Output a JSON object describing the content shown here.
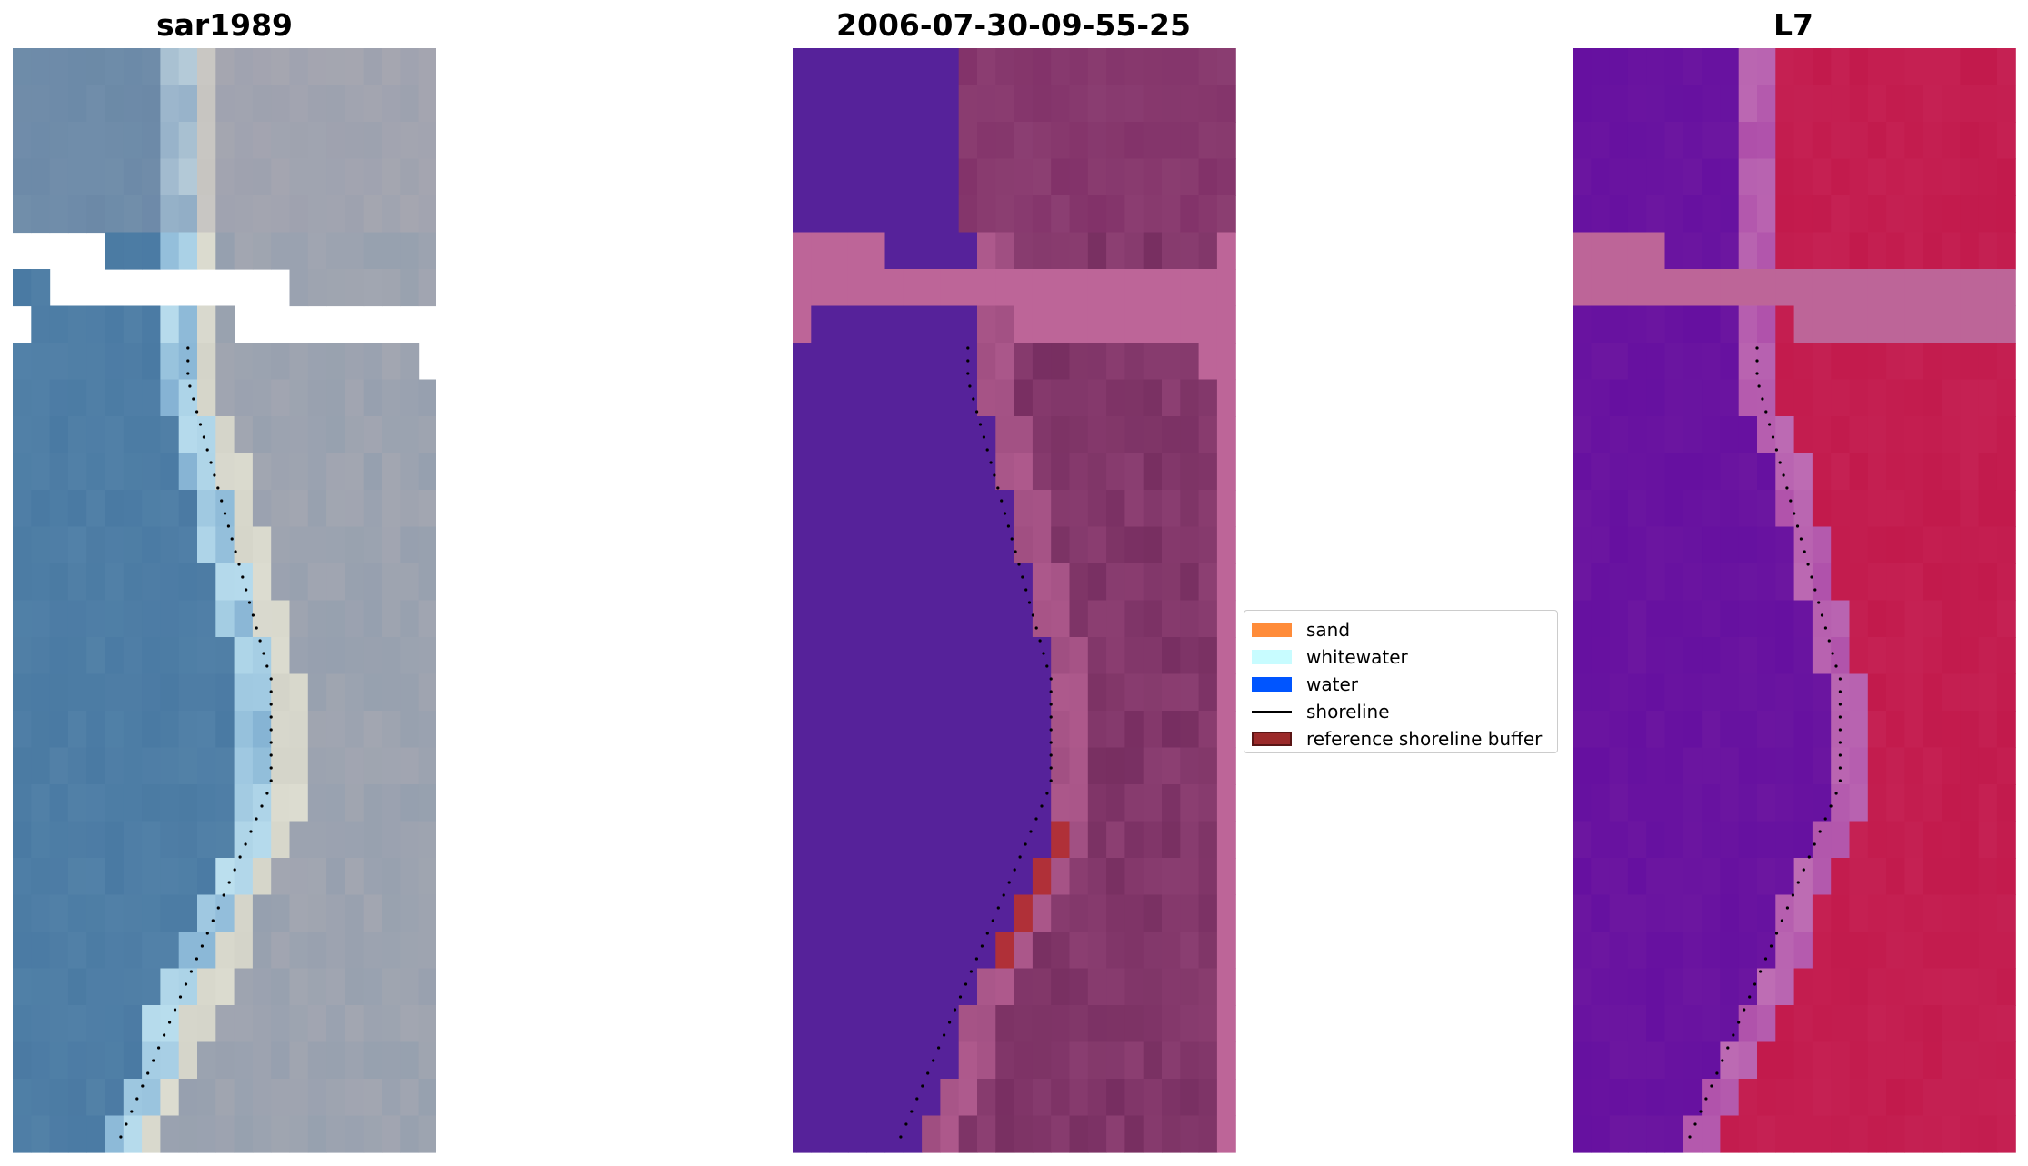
{
  "figure": {
    "panels": [
      {
        "title": "sar1989",
        "kind": "true-color"
      },
      {
        "title": "2006-07-30-09-55-25",
        "kind": "classified"
      },
      {
        "title": "L7",
        "kind": "index"
      }
    ]
  },
  "legend": {
    "items": [
      {
        "label": "sand",
        "color": "#ff8c3a",
        "kind": "patch"
      },
      {
        "label": "whitewater",
        "color": "#c8fcff",
        "kind": "patch"
      },
      {
        "label": "water",
        "color": "#0055ff",
        "kind": "patch"
      },
      {
        "label": "shoreline",
        "color": "#000000",
        "kind": "line"
      },
      {
        "label": "reference shoreline buffer",
        "color": "#9b2a2a",
        "kind": "patch",
        "edge": "#5a1515"
      }
    ]
  },
  "colors": {
    "nodata_pink": "#bd6598",
    "water_purple": "#56229a",
    "land_mauve": "#8c3f72",
    "buffer_red": "#b03038",
    "sea_blue": "#4a7aa3",
    "sand_white": "#dcdcd0",
    "index_purple": "#6c16a0",
    "index_red": "#c21a4c"
  }
}
